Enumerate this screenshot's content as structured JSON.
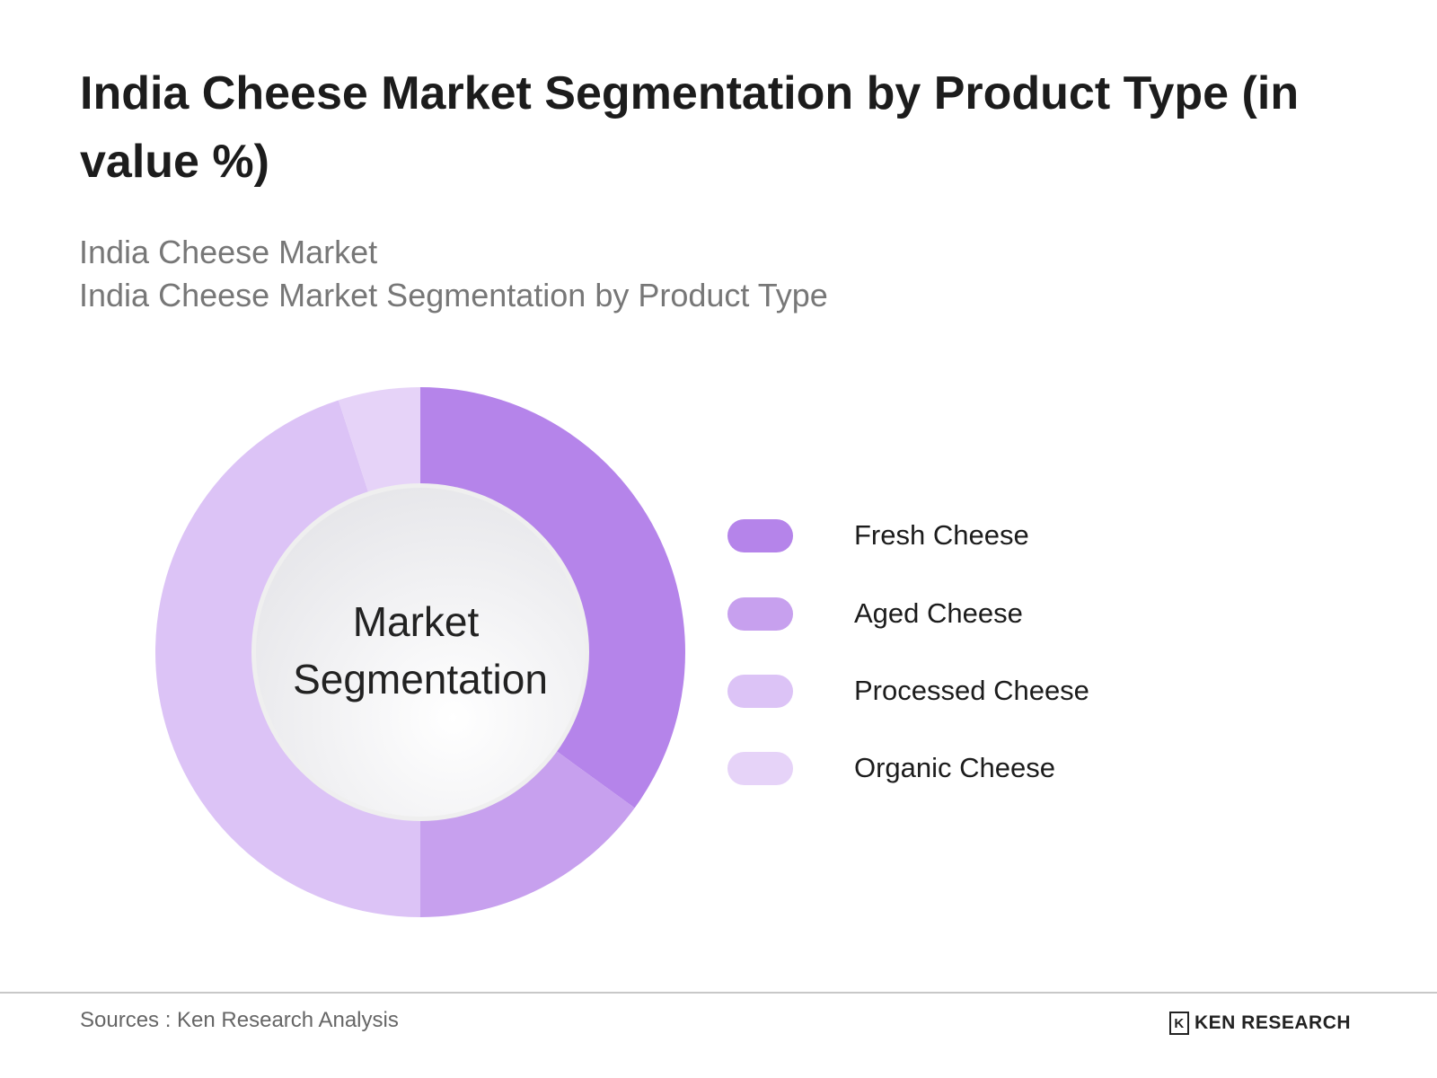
{
  "title": "India Cheese Market Segmentation by Product Type (in value %)",
  "subtitle1": "India Cheese Market",
  "subtitle2": "India Cheese Market Segmentation by Product Type",
  "center_label": [
    "Market",
    "Segmentation"
  ],
  "source": "Sources : Ken Research Analysis",
  "logo_text": "KEN RESEARCH",
  "chart_data": {
    "type": "pie",
    "variant": "donut",
    "title": "India Cheese Market Segmentation by Product Type (in value %)",
    "categories": [
      "Fresh Cheese",
      "Aged Cheese",
      "Processed Cheese",
      "Organic Cheese"
    ],
    "values": [
      35,
      15,
      45,
      5
    ],
    "colors": [
      "#b584ea",
      "#c7a0ee",
      "#dcc3f6",
      "#e6d3f8"
    ],
    "legend_position": "right"
  }
}
